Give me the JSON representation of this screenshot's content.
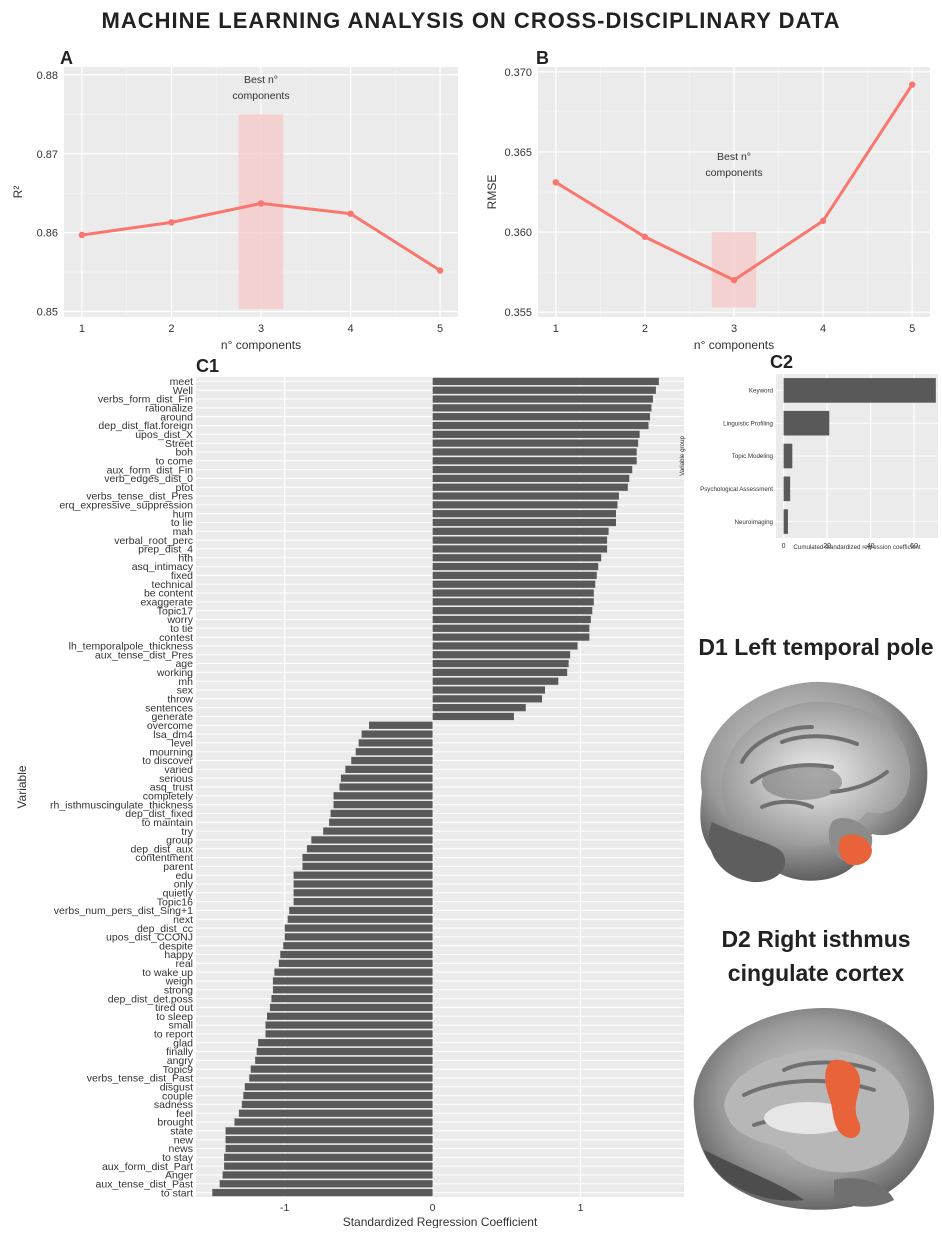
{
  "figure_title": "MACHINE LEARNING ANALYSIS ON CROSS-DISCIPLINARY DATA",
  "panels": {
    "A": "A",
    "B": "B",
    "C1": "C1",
    "C2": "C2"
  },
  "brain_panels": {
    "d1_title": "D1 Left temporal pole",
    "d2_title_line1": "D2 Right isthmus",
    "d2_title_line2": "cingulate cortex"
  },
  "colors": {
    "line": "#F8766D",
    "highlight": "#F4CCCC",
    "bar": "#595959",
    "panel_bg": "#EBEBEB",
    "grid": "#FFFFFF",
    "cortex_highlight": "#E8633A"
  },
  "chart_data": [
    {
      "id": "A",
      "type": "line",
      "x": [
        1,
        2,
        3,
        4,
        5
      ],
      "y": [
        0.8597,
        0.8613,
        0.8637,
        0.8624,
        0.8552
      ],
      "xlabel": "n° components",
      "ylabel": "R²",
      "xlim": [
        0.8,
        5.2
      ],
      "ylim": [
        0.8493,
        0.881
      ],
      "yticks": [
        "0.85",
        "0.86",
        "0.87",
        "0.88"
      ],
      "ytick_values": [
        0.85,
        0.86,
        0.87,
        0.88
      ],
      "xticks": [
        "1",
        "2",
        "3",
        "4",
        "5"
      ],
      "highlight": {
        "x_from": 2.75,
        "x_to": 3.25,
        "y_from": 0.8503,
        "y_to": 0.875
      },
      "annotation": [
        "Best n°",
        "components"
      ],
      "annotation_at": {
        "x": 3,
        "y": 0.879
      },
      "grid": true
    },
    {
      "id": "B",
      "type": "line",
      "x": [
        1,
        2,
        3,
        4,
        5
      ],
      "y": [
        0.3631,
        0.3597,
        0.357,
        0.3607,
        0.3692
      ],
      "xlabel": "n° components",
      "ylabel": "RMSE",
      "xlim": [
        0.8,
        5.2
      ],
      "ylim": [
        0.3547,
        0.3703
      ],
      "yticks": [
        "0.355",
        "0.360",
        "0.365",
        "0.370"
      ],
      "ytick_values": [
        0.355,
        0.36,
        0.365,
        0.37
      ],
      "xticks": [
        "1",
        "2",
        "3",
        "4",
        "5"
      ],
      "highlight": {
        "x_from": 2.75,
        "x_to": 3.25,
        "y_from": 0.3553,
        "y_to": 0.36
      },
      "annotation": [
        "Best n°",
        "components"
      ],
      "annotation_at": {
        "x": 3,
        "y": 0.3645
      },
      "grid": true
    },
    {
      "id": "C1",
      "type": "bar",
      "orientation": "horizontal",
      "xlabel": "Standardized Regression Coefficient",
      "ylabel": "Variable",
      "xlim": [
        -1.6,
        1.7
      ],
      "xticks": [
        "-1",
        "0",
        "1"
      ],
      "xtick_values": [
        -1,
        0,
        1
      ],
      "grid": true,
      "categories": [
        "meet",
        "Well",
        "verbs_form_dist_Fin",
        "rationalize",
        "around",
        "dep_dist_flat.foreign",
        "upos_dist_X",
        "Street",
        "boh",
        "to come",
        "aux_form_dist_Fin",
        "verb_edges_dist_0",
        "ptot",
        "verbs_tense_dist_Pres",
        "erq_expressive_suppression",
        "hum",
        "to lie",
        "mah",
        "verbal_root_perc",
        "prep_dist_4",
        "hth",
        "asq_intimacy",
        "fixed",
        "technical",
        "be content",
        "exaggerate",
        "Topic17",
        "worry",
        "to tie",
        "contest",
        "lh_temporalpole_thickness",
        "aux_tense_dist_Pres",
        "age",
        "working",
        "mh",
        "sex",
        "throw",
        "sentences",
        "generate",
        "overcome",
        "lsa_dm4",
        "level",
        "mourning",
        "to discover",
        "varied",
        "serious",
        "asq_trust",
        "completely",
        "rh_isthmuscingulate_thickness",
        "dep_dist_fixed",
        "to maintain",
        "try",
        "group",
        "dep_dist_aux",
        "contentment",
        "parent",
        "edu",
        "only",
        "quietly",
        "Topic16",
        "verbs_num_pers_dist_Sing+1",
        "next",
        "dep_dist_cc",
        "upos_dist_CCONJ",
        "despite",
        "happy",
        "real",
        "to wake up",
        "weigh",
        "strong",
        "dep_dist_det.poss",
        "tired out",
        "to sleep",
        "small",
        "to report",
        "glad",
        "finally",
        "angry",
        "Topic9",
        "verbs_tense_dist_Past",
        "disgust",
        "couple",
        "sadness",
        "feel",
        "brought",
        "state",
        "new",
        "news",
        "to stay",
        "aux_form_dist_Part",
        "Anger",
        "aux_tense_dist_Past",
        "to start"
      ],
      "values": [
        1.53,
        1.51,
        1.49,
        1.48,
        1.47,
        1.46,
        1.4,
        1.39,
        1.38,
        1.38,
        1.35,
        1.33,
        1.32,
        1.26,
        1.25,
        1.24,
        1.24,
        1.19,
        1.18,
        1.18,
        1.14,
        1.12,
        1.11,
        1.1,
        1.09,
        1.09,
        1.08,
        1.07,
        1.06,
        1.06,
        0.98,
        0.93,
        0.92,
        0.91,
        0.85,
        0.76,
        0.74,
        0.63,
        0.55,
        -0.43,
        -0.48,
        -0.5,
        -0.52,
        -0.55,
        -0.59,
        -0.62,
        -0.63,
        -0.67,
        -0.67,
        -0.69,
        -0.7,
        -0.74,
        -0.82,
        -0.85,
        -0.88,
        -0.88,
        -0.94,
        -0.94,
        -0.94,
        -0.94,
        -0.97,
        -0.98,
        -1.0,
        -1.0,
        -1.01,
        -1.03,
        -1.04,
        -1.07,
        -1.08,
        -1.08,
        -1.09,
        -1.1,
        -1.12,
        -1.13,
        -1.13,
        -1.18,
        -1.19,
        -1.2,
        -1.23,
        -1.24,
        -1.27,
        -1.28,
        -1.29,
        -1.31,
        -1.34,
        -1.4,
        -1.4,
        -1.4,
        -1.41,
        -1.41,
        -1.42,
        -1.44,
        -1.49
      ]
    },
    {
      "id": "C2",
      "type": "bar",
      "orientation": "horizontal",
      "xlabel": "Cumulated standardized regression coefficient",
      "ylabel": "Variable group",
      "xlim": [
        -3.5,
        71
      ],
      "xticks": [
        "0",
        "20",
        "40",
        "60"
      ],
      "xtick_values": [
        0,
        20,
        40,
        60
      ],
      "grid": true,
      "categories": [
        "Keyword",
        "Linguistic Profiling",
        "Topic Modeling",
        "Psychological Assessment",
        "Neuroimaging"
      ],
      "values": [
        70,
        21,
        4,
        3,
        2
      ]
    }
  ]
}
